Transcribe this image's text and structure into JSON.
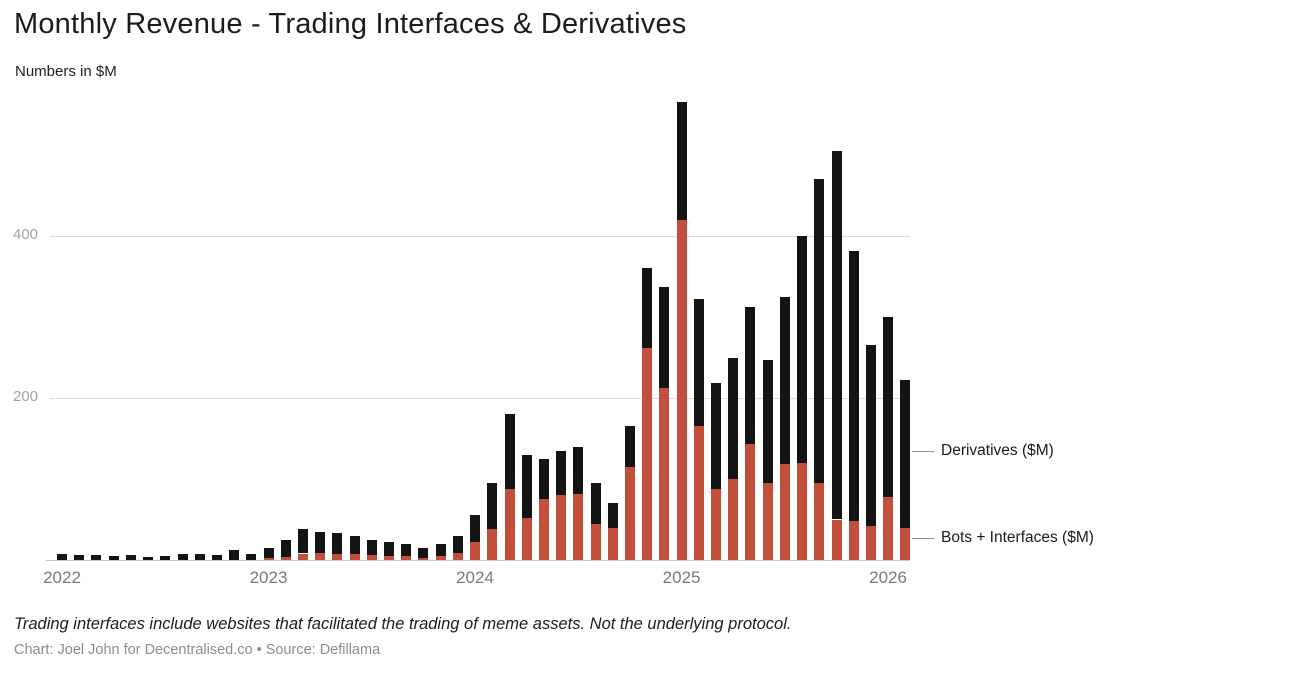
{
  "header": {
    "title": "Monthly Revenue - Trading Interfaces & Derivatives",
    "subtitle": "Numbers in $M"
  },
  "footer": {
    "note": "Trading interfaces include websites that facilitated the trading of meme assets. Not the underlying protocol.",
    "credit": "Chart: Joel John for Decentralised.co • Source: Defillama"
  },
  "chart_data": {
    "type": "bar",
    "stacked": true,
    "title": "Monthly Revenue - Trading Interfaces & Derivatives",
    "subtitle": "Numbers in $M",
    "grid": "horizontal",
    "legend_position": "right-annotations",
    "ylim": [
      0,
      580
    ],
    "y_ticks": [
      200,
      400
    ],
    "x_ticks": [
      {
        "label": "2022",
        "index": 0
      },
      {
        "label": "2023",
        "index": 12
      },
      {
        "label": "2024",
        "index": 24
      },
      {
        "label": "2025",
        "index": 36
      },
      {
        "label": "2026",
        "index": 48
      }
    ],
    "x": [
      "2022-01",
      "2022-02",
      "2022-03",
      "2022-04",
      "2022-05",
      "2022-06",
      "2022-07",
      "2022-08",
      "2022-09",
      "2022-10",
      "2022-11",
      "2022-12",
      "2023-01",
      "2023-02",
      "2023-03",
      "2023-04",
      "2023-05",
      "2023-06",
      "2023-07",
      "2023-08",
      "2023-09",
      "2023-10",
      "2023-11",
      "2023-12",
      "2024-01",
      "2024-02",
      "2024-03",
      "2024-04",
      "2024-05",
      "2024-06",
      "2024-07",
      "2024-08",
      "2024-09",
      "2024-10",
      "2024-11",
      "2024-12",
      "2025-01",
      "2025-02",
      "2025-03",
      "2025-04",
      "2025-05",
      "2025-06",
      "2025-07",
      "2025-08",
      "2025-09",
      "2025-10",
      "2025-11",
      "2025-12",
      "2026-01",
      "2026-02"
    ],
    "series": [
      {
        "name": "Bots + Interfaces ($M)",
        "color": "#c14f3c",
        "values": [
          0,
          0,
          0,
          0,
          0,
          0,
          0,
          0,
          0,
          0,
          0,
          0,
          2,
          4,
          8,
          9,
          8,
          7,
          6,
          5,
          5,
          3,
          5,
          9,
          22,
          38,
          88,
          52,
          75,
          80,
          82,
          45,
          40,
          115,
          262,
          212,
          420,
          165,
          88,
          100,
          143,
          95,
          118,
          120,
          95,
          50,
          48,
          42,
          78,
          40
        ]
      },
      {
        "name": "Derivatives ($M)",
        "color": "#141414",
        "values": [
          8,
          6,
          6,
          5,
          6,
          4,
          5,
          7,
          8,
          6,
          12,
          8,
          13,
          21,
          30,
          26,
          25,
          23,
          19,
          17,
          15,
          12,
          15,
          21,
          33,
          57,
          92,
          78,
          50,
          55,
          58,
          50,
          30,
          50,
          98,
          125,
          145,
          157,
          131,
          150,
          170,
          152,
          207,
          280,
          375,
          455,
          333,
          223,
          222,
          182
        ]
      }
    ]
  }
}
